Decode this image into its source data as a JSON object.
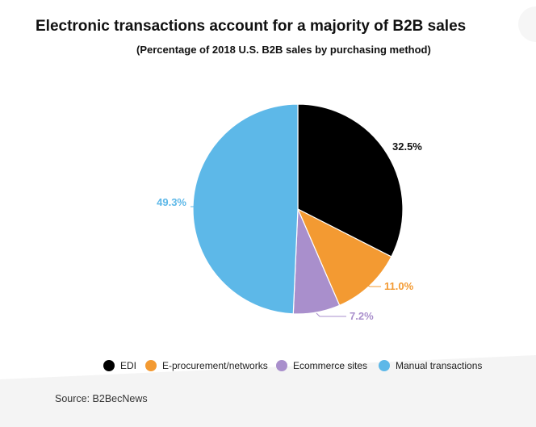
{
  "header": {
    "title": "Electronic transactions account for a majority of B2B sales",
    "subtitle": "(Percentage of 2018 U.S. B2B sales by purchasing method)"
  },
  "footer": {
    "source": "Source: B2BecNews"
  },
  "chart_data": {
    "type": "pie",
    "title": "Electronic transactions account for a majority of B2B sales",
    "subtitle": "(Percentage of 2018 U.S. B2B sales by purchasing method)",
    "categories": [
      "EDI",
      "E-procurement/networks",
      "Ecommerce sites",
      "Manual transactions"
    ],
    "values": [
      32.5,
      11.0,
      7.2,
      49.3
    ],
    "data_labels": [
      "32.5%",
      "11.0%",
      "7.2%",
      "49.3%"
    ],
    "colors": [
      "#000000",
      "#f39a32",
      "#a98fcc",
      "#5db8e8"
    ],
    "legend_position": "bottom",
    "start_angle": "12 o'clock, clockwise"
  }
}
